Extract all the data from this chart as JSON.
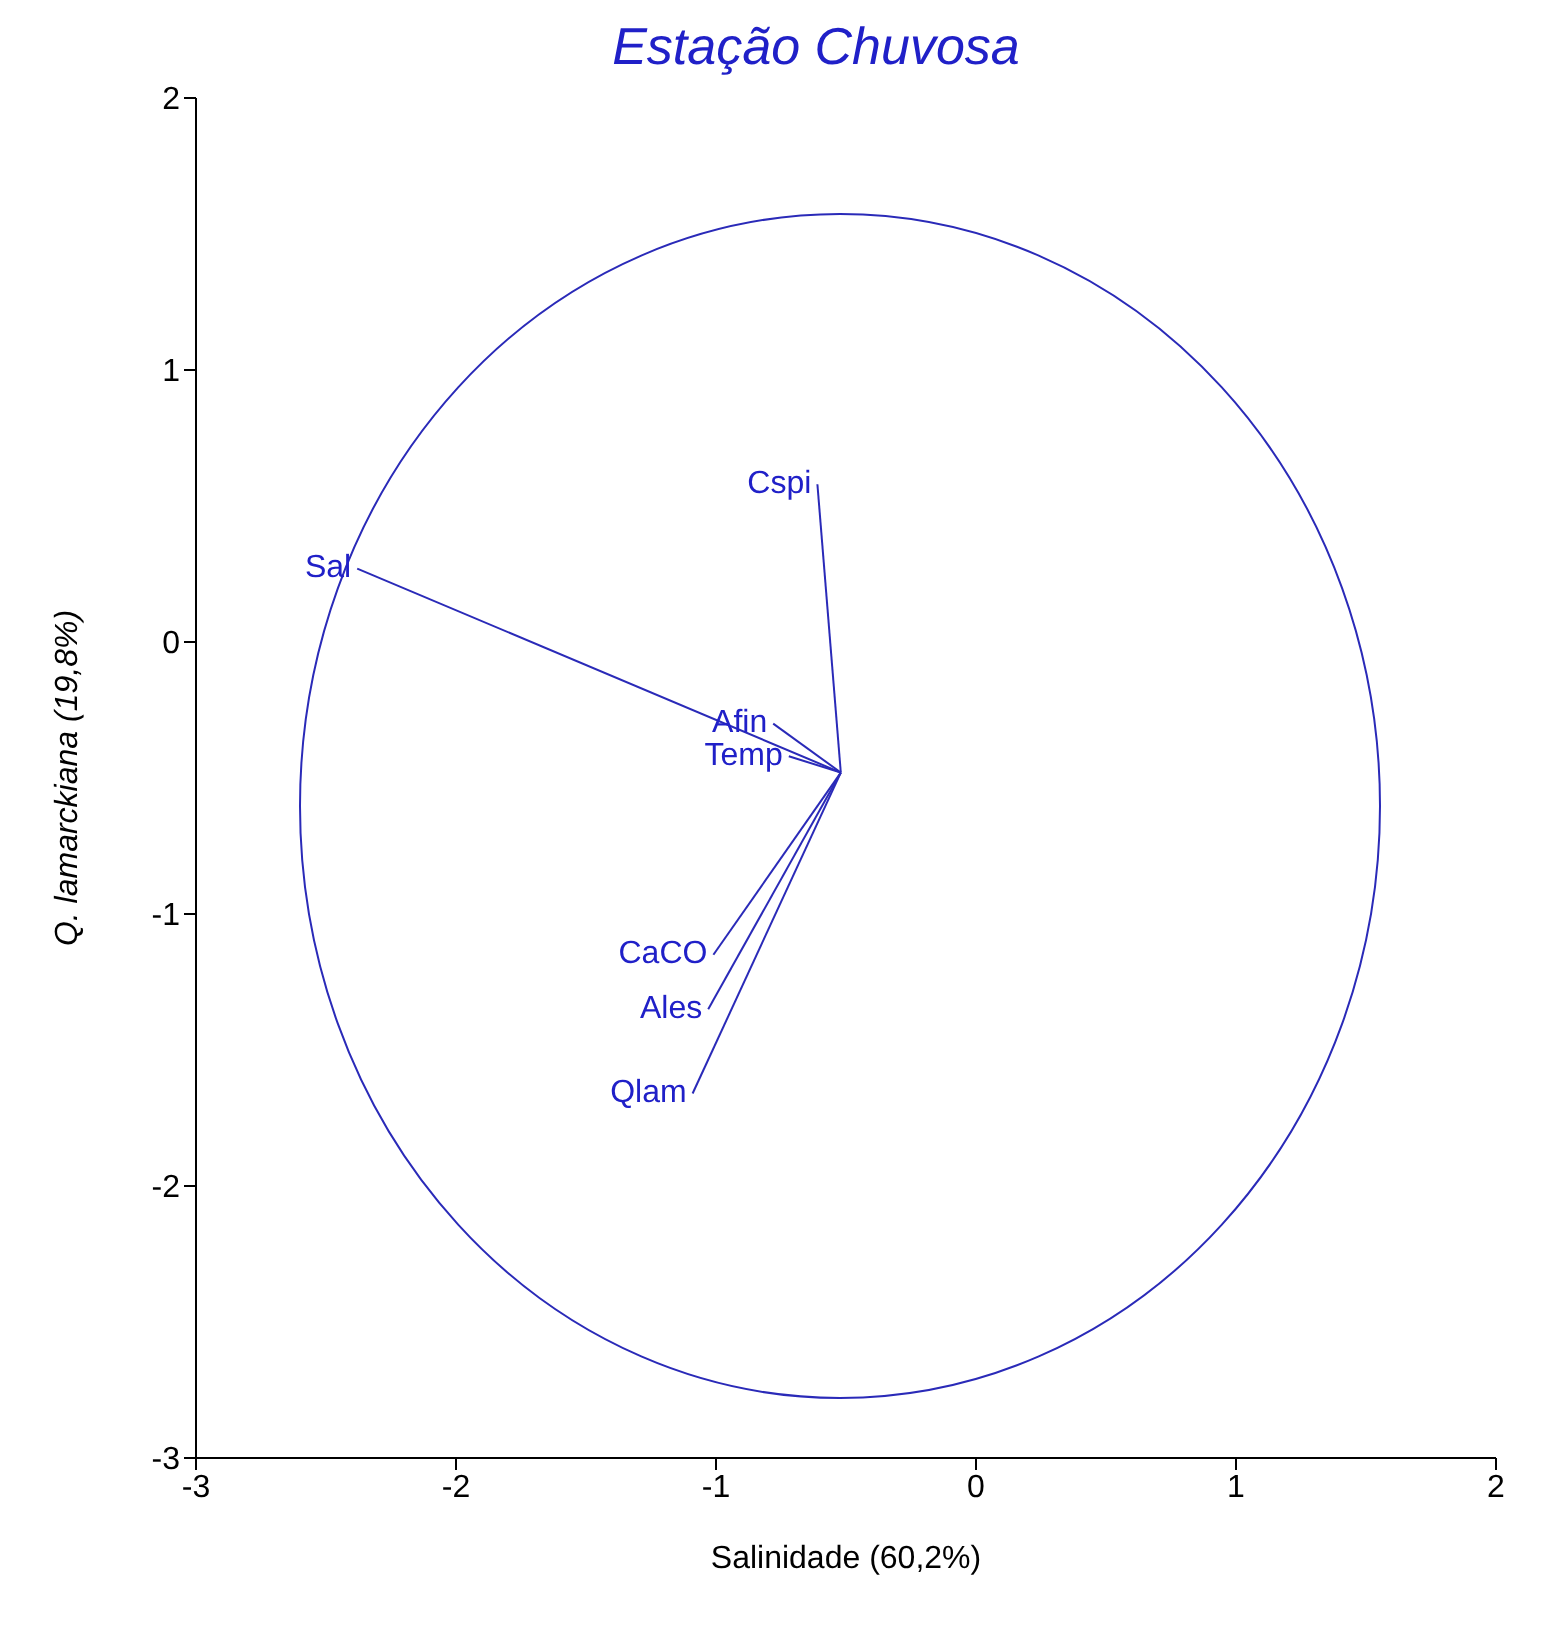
{
  "chart_data": {
    "type": "line",
    "title": "Estação Chuvosa",
    "xlabel": "Salinidade (60,2%)",
    "ylabel": "Q. lamarckiana (19,8%)",
    "xlim": [
      -3,
      2
    ],
    "ylim": [
      -3,
      2
    ],
    "xticks": [
      -3,
      -2,
      -1,
      0,
      1,
      2
    ],
    "yticks": [
      -3,
      -2,
      -1,
      0,
      1,
      2
    ],
    "grid": false,
    "legend": false,
    "series": [
      {
        "name": "Sal",
        "color": "#2a2ab8",
        "x": [
          -0.52,
          -2.38
        ],
        "values": [
          -0.48,
          0.27
        ]
      },
      {
        "name": "Cspi",
        "color": "#2a2ab8",
        "x": [
          -0.52,
          -0.61
        ],
        "values": [
          -0.48,
          0.58
        ]
      },
      {
        "name": "Afin",
        "color": "#2a2ab8",
        "x": [
          -0.52,
          -0.78
        ],
        "values": [
          -0.48,
          -0.3
        ]
      },
      {
        "name": "Temp",
        "color": "#2a2ab8",
        "x": [
          -0.52,
          -0.72
        ],
        "values": [
          -0.48,
          -0.42
        ]
      },
      {
        "name": "CaCO",
        "color": "#2a2ab8",
        "x": [
          -0.52,
          -1.01
        ],
        "values": [
          -0.48,
          -1.15
        ]
      },
      {
        "name": "Ales",
        "color": "#2a2ab8",
        "x": [
          -0.52,
          -1.03
        ],
        "values": [
          -0.48,
          -1.35
        ]
      },
      {
        "name": "Qlam",
        "color": "#2a2ab8",
        "x": [
          -0.52,
          -1.09
        ],
        "values": [
          -0.48,
          -1.66
        ]
      }
    ]
  }
}
